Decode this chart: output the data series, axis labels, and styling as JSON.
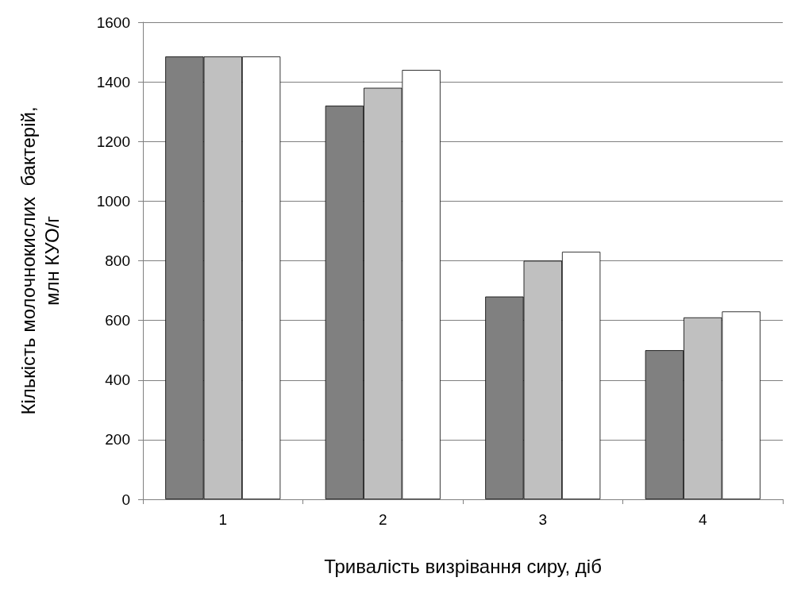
{
  "chart_data": {
    "type": "bar",
    "xlabel": "Тривалість визрівання сиру, діб",
    "ylabel": "Кількість молочнокислих  бактерій,\nмлн КУО/г",
    "categories": [
      "1",
      "2",
      "3",
      "4"
    ],
    "series": [
      {
        "color": "#808080",
        "values": [
          1485,
          1320,
          680,
          500
        ]
      },
      {
        "color": "#c0c0c0",
        "values": [
          1485,
          1380,
          800,
          610
        ]
      },
      {
        "color": "#ffffff",
        "values": [
          1485,
          1440,
          830,
          630
        ]
      }
    ],
    "ylim": [
      0,
      1600
    ],
    "yticks": [
      0,
      200,
      400,
      600,
      800,
      1000,
      1200,
      1400,
      1600
    ],
    "grid": "y"
  }
}
